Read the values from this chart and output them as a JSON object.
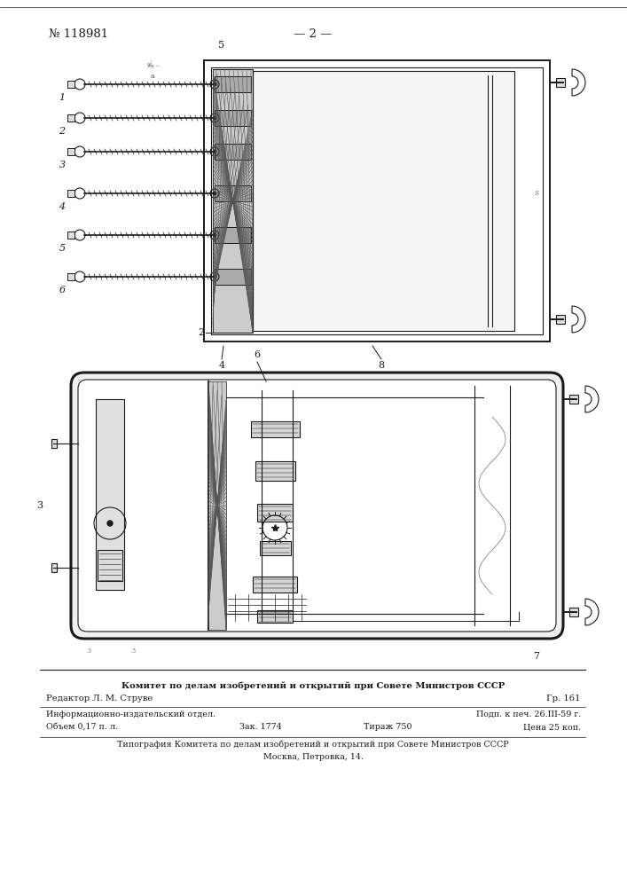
{
  "page_number": "№ 118981",
  "page_dash": "— 2 —",
  "bg_color": "#ffffff",
  "line_color": "#1a1a1a",
  "footer_line1": "Комитет по делам изобретений и открытий при Совете Министров СССР",
  "footer_line2_left": "Редактор Л. М. Струве",
  "footer_line2_right": "Гр. 161",
  "footer_line3_left": "Информационно-издательский отдел.",
  "footer_line3_right": "Подп. к печ. 26.III-59 г.",
  "footer_line4_left": "Объем 0,17 п. л.",
  "footer_line4_mid1": "Зак. 1774",
  "footer_line4_mid2": "Тираж 750",
  "footer_line4_right": "Цена 25 коп.",
  "footer_line5": "Типография Комитета по делам изобретений и открытий при Совете Министров СССР",
  "footer_line6": "Москва, Петровка, 14."
}
